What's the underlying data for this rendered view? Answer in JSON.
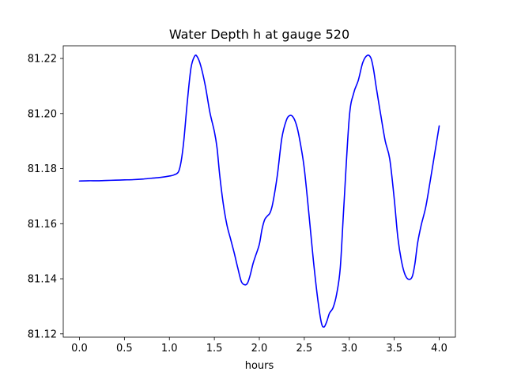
{
  "chart_data": {
    "type": "line",
    "title": "Water Depth h at gauge 520",
    "xlabel": "hours",
    "ylabel": "",
    "xlim": [
      -0.18,
      4.18
    ],
    "ylim": [
      81.1188,
      81.2246
    ],
    "xticks": [
      0.0,
      0.5,
      1.0,
      1.5,
      2.0,
      2.5,
      3.0,
      3.5,
      4.0
    ],
    "xtick_labels": [
      "0.0",
      "0.5",
      "1.0",
      "1.5",
      "2.0",
      "2.5",
      "3.0",
      "3.5",
      "4.0"
    ],
    "yticks": [
      81.12,
      81.14,
      81.16,
      81.18,
      81.2,
      81.22
    ],
    "ytick_labels": [
      "81.12",
      "81.14",
      "81.16",
      "81.18",
      "81.20",
      "81.22"
    ],
    "grid": false,
    "series": [
      {
        "color": "#0000ff",
        "x": [
          0.0,
          0.1,
          0.2,
          0.3,
          0.4,
          0.5,
          0.6,
          0.7,
          0.8,
          0.9,
          1.0,
          1.05,
          1.1,
          1.13,
          1.16,
          1.2,
          1.24,
          1.28,
          1.31,
          1.35,
          1.4,
          1.45,
          1.5,
          1.53,
          1.56,
          1.6,
          1.64,
          1.68,
          1.72,
          1.76,
          1.8,
          1.84,
          1.87,
          1.9,
          1.93,
          1.96,
          2.0,
          2.03,
          2.06,
          2.09,
          2.12,
          2.15,
          2.2,
          2.25,
          2.3,
          2.34,
          2.38,
          2.42,
          2.46,
          2.5,
          2.55,
          2.6,
          2.65,
          2.69,
          2.72,
          2.75,
          2.78,
          2.82,
          2.86,
          2.9,
          2.94,
          3.0,
          3.05,
          3.1,
          3.15,
          3.2,
          3.24,
          3.27,
          3.3,
          3.35,
          3.4,
          3.45,
          3.5,
          3.54,
          3.58,
          3.62,
          3.66,
          3.7,
          3.73,
          3.76,
          3.8,
          3.85,
          3.9,
          3.95,
          4.0
        ],
        "y": [
          81.1755,
          81.1756,
          81.1756,
          81.1757,
          81.1758,
          81.1759,
          81.176,
          81.1762,
          81.1765,
          81.1768,
          81.1773,
          81.1777,
          81.1788,
          81.1825,
          81.19,
          81.2045,
          81.2165,
          81.2208,
          81.2206,
          81.2172,
          81.21,
          81.2005,
          81.1935,
          81.1875,
          81.1775,
          81.167,
          81.1595,
          81.1545,
          81.1495,
          81.144,
          81.139,
          81.1378,
          81.1385,
          81.1415,
          81.1455,
          81.1485,
          81.1525,
          81.158,
          81.1615,
          81.1628,
          81.164,
          81.1675,
          81.1775,
          81.191,
          81.1975,
          81.1993,
          81.1985,
          81.195,
          81.1885,
          81.18,
          81.164,
          81.147,
          81.1325,
          81.124,
          81.1225,
          81.1245,
          81.1275,
          81.1295,
          81.1345,
          81.144,
          81.1665,
          81.1985,
          81.2075,
          81.212,
          81.2185,
          81.2211,
          81.2202,
          81.216,
          81.2095,
          81.1995,
          81.19,
          81.1835,
          81.169,
          81.155,
          81.1465,
          81.1415,
          81.1398,
          81.1408,
          81.1455,
          81.153,
          81.1595,
          81.166,
          81.1755,
          81.1855,
          81.1955
        ]
      }
    ]
  }
}
